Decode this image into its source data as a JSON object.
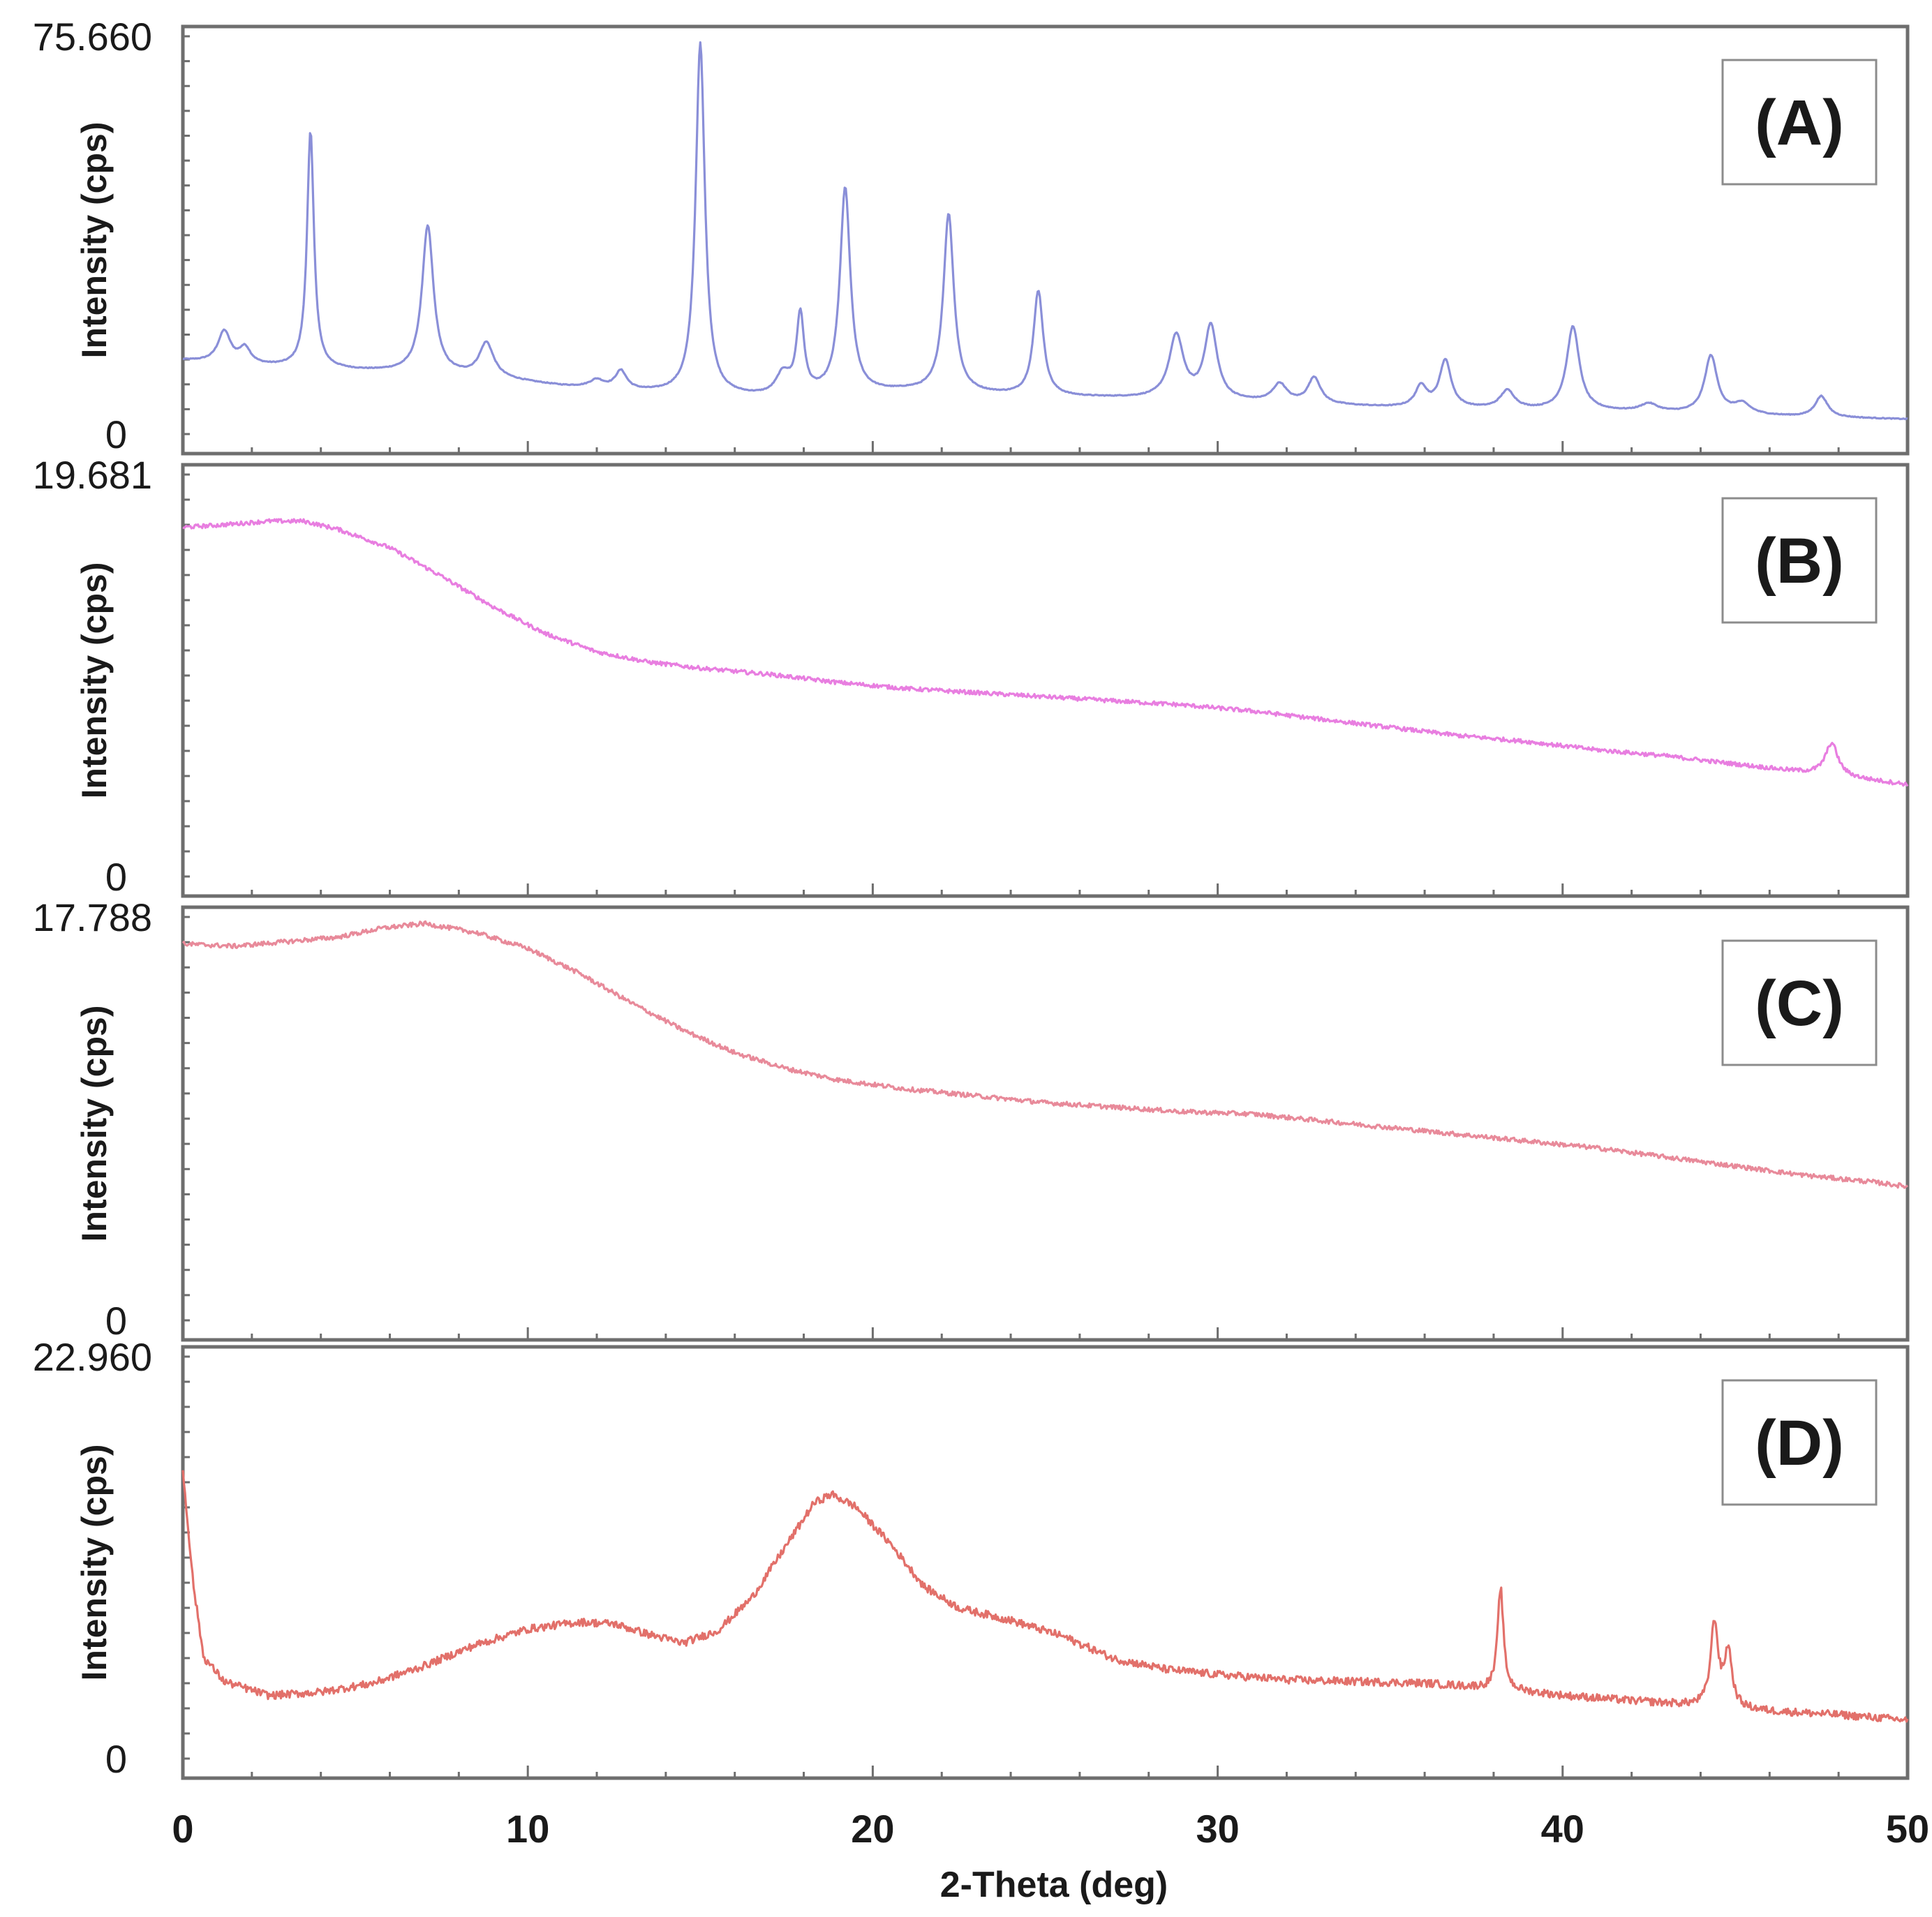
{
  "figure": {
    "xlabel": "2-Theta (deg)",
    "ylabel": "Intensity (cps)"
  },
  "chart_data": [
    {
      "type": "line",
      "panel_label": "(A)",
      "title": "",
      "xlabel": "2-Theta (deg)",
      "ylabel": "Intensity (cps)",
      "xlim": [
        0,
        50
      ],
      "ylim": [
        0,
        75.66
      ],
      "y_tick_labels": [
        "75.660",
        "0"
      ],
      "color": "#8a8fd8",
      "profile": "crystalline",
      "baseline": [
        [
          0,
          14
        ],
        [
          2,
          13
        ],
        [
          3.5,
          12.5
        ],
        [
          5,
          12
        ],
        [
          7,
          11.5
        ],
        [
          9,
          10.5
        ],
        [
          11,
          9
        ],
        [
          13,
          8
        ],
        [
          15,
          7.2
        ],
        [
          17,
          6.8
        ],
        [
          19,
          7.5
        ],
        [
          21,
          8
        ],
        [
          23,
          7.5
        ],
        [
          25,
          7
        ],
        [
          27,
          6.8
        ],
        [
          29,
          6.5
        ],
        [
          31,
          6
        ],
        [
          33,
          5.5
        ],
        [
          35,
          5
        ],
        [
          37,
          4.8
        ],
        [
          39,
          4.5
        ],
        [
          41,
          4.3
        ],
        [
          43,
          4
        ],
        [
          45,
          3.6
        ],
        [
          47,
          3.2
        ],
        [
          50,
          2.8
        ]
      ],
      "peaks": [
        [
          1.2,
          6,
          0.22
        ],
        [
          1.8,
          3,
          0.2
        ],
        [
          3.7,
          45,
          0.12
        ],
        [
          7.1,
          28,
          0.2
        ],
        [
          8.8,
          6.5,
          0.25
        ],
        [
          12.0,
          1.5,
          0.25
        ],
        [
          12.7,
          3.5,
          0.2
        ],
        [
          15.0,
          67,
          0.16
        ],
        [
          17.4,
          4,
          0.25
        ],
        [
          17.9,
          15,
          0.13
        ],
        [
          19.2,
          39,
          0.18
        ],
        [
          22.2,
          34,
          0.18
        ],
        [
          24.8,
          20,
          0.17
        ],
        [
          28.8,
          12,
          0.25
        ],
        [
          29.8,
          14,
          0.22
        ],
        [
          31.8,
          3.5,
          0.25
        ],
        [
          32.8,
          5,
          0.22
        ],
        [
          35.9,
          4,
          0.2
        ],
        [
          36.6,
          9,
          0.2
        ],
        [
          38.4,
          3.5,
          0.25
        ],
        [
          40.3,
          16,
          0.22
        ],
        [
          42.5,
          1.5,
          0.3
        ],
        [
          44.3,
          11,
          0.22
        ],
        [
          45.2,
          2,
          0.3
        ],
        [
          47.5,
          4,
          0.22
        ]
      ]
    },
    {
      "type": "line",
      "panel_label": "(B)",
      "title": "",
      "xlabel": "2-Theta (deg)",
      "ylabel": "Intensity (cps)",
      "xlim": [
        0,
        50
      ],
      "ylim": [
        0,
        19.681
      ],
      "y_tick_labels": [
        "19.681",
        "0"
      ],
      "color": "#e87ee0",
      "profile": "amorphous",
      "baseline": [
        [
          0,
          17.1
        ],
        [
          1,
          17.2
        ],
        [
          2.5,
          17.4
        ],
        [
          3.5,
          17.4
        ],
        [
          4.5,
          17.0
        ],
        [
          6,
          16.1
        ],
        [
          7.5,
          14.7
        ],
        [
          9,
          13.2
        ],
        [
          10.5,
          11.9
        ],
        [
          12,
          11.0
        ],
        [
          13.5,
          10.5
        ],
        [
          15,
          10.2
        ],
        [
          17,
          9.9
        ],
        [
          19,
          9.5
        ],
        [
          21,
          9.2
        ],
        [
          23,
          9.0
        ],
        [
          25,
          8.8
        ],
        [
          27,
          8.6
        ],
        [
          29,
          8.4
        ],
        [
          31,
          8.1
        ],
        [
          33,
          7.7
        ],
        [
          35,
          7.3
        ],
        [
          37,
          6.9
        ],
        [
          39,
          6.6
        ],
        [
          41,
          6.2
        ],
        [
          43,
          5.9
        ],
        [
          45,
          5.5
        ],
        [
          46.5,
          5.2
        ],
        [
          48,
          4.9
        ],
        [
          50,
          4.5
        ]
      ],
      "peaks": [
        [
          47.8,
          1.6,
          0.22
        ]
      ]
    },
    {
      "type": "line",
      "panel_label": "(C)",
      "title": "",
      "xlabel": "2-Theta (deg)",
      "ylabel": "Intensity (cps)",
      "xlim": [
        0,
        50
      ],
      "ylim": [
        0,
        17.788
      ],
      "y_tick_labels": [
        "17.788",
        "0"
      ],
      "color": "#e88a9a",
      "profile": "amorphous",
      "baseline": [
        [
          0,
          16.6
        ],
        [
          1.5,
          16.5
        ],
        [
          3,
          16.7
        ],
        [
          4.5,
          16.9
        ],
        [
          5.8,
          17.3
        ],
        [
          7,
          17.5
        ],
        [
          8.5,
          17.1
        ],
        [
          10,
          16.4
        ],
        [
          11.5,
          15.3
        ],
        [
          13,
          14.0
        ],
        [
          14.5,
          12.8
        ],
        [
          16,
          11.8
        ],
        [
          17.5,
          11.1
        ],
        [
          19,
          10.6
        ],
        [
          21,
          10.2
        ],
        [
          23,
          9.9
        ],
        [
          25,
          9.6
        ],
        [
          27,
          9.4
        ],
        [
          29,
          9.2
        ],
        [
          31,
          9.1
        ],
        [
          33,
          8.8
        ],
        [
          35,
          8.5
        ],
        [
          37,
          8.2
        ],
        [
          39,
          7.9
        ],
        [
          41,
          7.6
        ],
        [
          43,
          7.2
        ],
        [
          45,
          6.8
        ],
        [
          47,
          6.4
        ],
        [
          49,
          6.1
        ],
        [
          50,
          5.9
        ]
      ],
      "peaks": []
    },
    {
      "type": "line",
      "panel_label": "(D)",
      "title": "",
      "xlabel": "2-Theta (deg)",
      "ylabel": "Intensity (cps)",
      "xlim": [
        0,
        50
      ],
      "ylim": [
        0,
        22.96
      ],
      "y_tick_labels": [
        "22.960",
        "0"
      ],
      "color": "#e2706a",
      "profile": "semi-crystalline",
      "baseline": [
        [
          0,
          16.5
        ],
        [
          0.3,
          10
        ],
        [
          0.6,
          5.8
        ],
        [
          1.2,
          4.4
        ],
        [
          2.5,
          3.6
        ],
        [
          4,
          3.8
        ],
        [
          5.5,
          4.3
        ],
        [
          7,
          5.3
        ],
        [
          8.5,
          6.5
        ],
        [
          10,
          7.4
        ],
        [
          11.5,
          7.8
        ],
        [
          12.5,
          7.7
        ],
        [
          13.5,
          7.1
        ],
        [
          14.5,
          6.6
        ],
        [
          15.5,
          7.3
        ],
        [
          16.5,
          9.2
        ],
        [
          17.5,
          12.2
        ],
        [
          18.3,
          14.6
        ],
        [
          18.8,
          15.1
        ],
        [
          19.5,
          14.4
        ],
        [
          20.5,
          12.3
        ],
        [
          21.5,
          9.8
        ],
        [
          22.5,
          8.6
        ],
        [
          24,
          7.9
        ],
        [
          25.5,
          7.0
        ],
        [
          27,
          5.7
        ],
        [
          28.5,
          5.1
        ],
        [
          30,
          4.8
        ],
        [
          32,
          4.5
        ],
        [
          34,
          4.4
        ],
        [
          36,
          4.3
        ],
        [
          38,
          4.0
        ],
        [
          40,
          3.6
        ],
        [
          42,
          3.3
        ],
        [
          44,
          3.0
        ],
        [
          46,
          2.7
        ],
        [
          48,
          2.5
        ],
        [
          50,
          2.2
        ]
      ],
      "peaks": [
        [
          38.2,
          5.8,
          0.1
        ],
        [
          44.4,
          4.8,
          0.13
        ],
        [
          44.8,
          3.2,
          0.13
        ]
      ]
    }
  ],
  "x_axis": {
    "ticks": [
      0,
      10,
      20,
      30,
      40,
      50
    ],
    "tick_labels": [
      "0",
      "10",
      "20",
      "30",
      "40",
      "50"
    ]
  }
}
